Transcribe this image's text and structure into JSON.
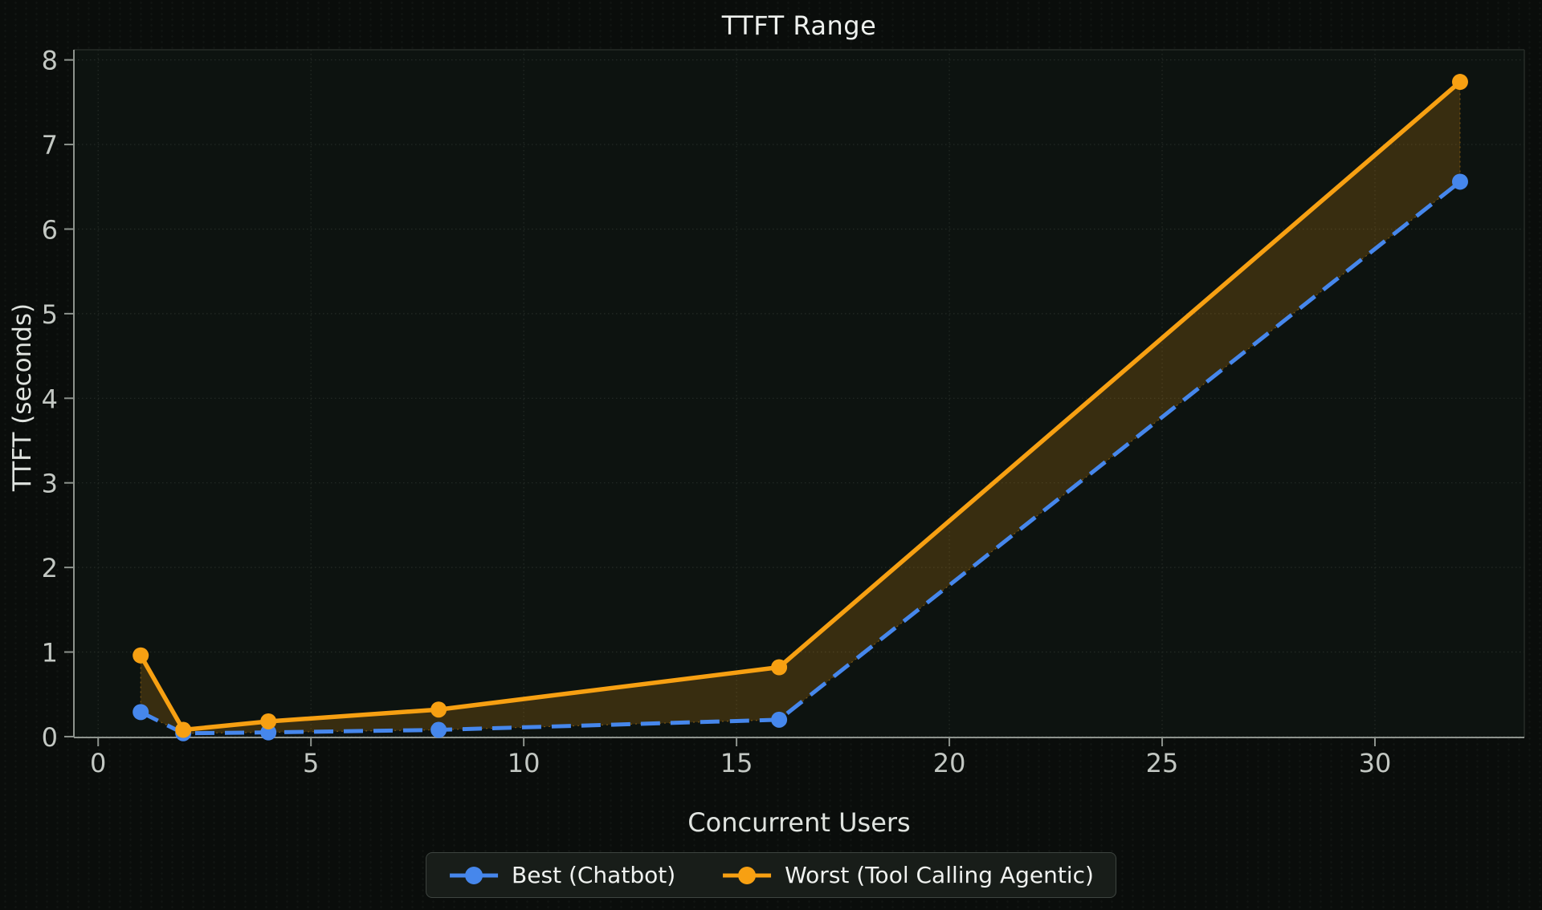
{
  "chart_data": {
    "type": "line",
    "title": "TTFT Range",
    "xlabel": "Concurrent Users",
    "ylabel": "TTFT (seconds)",
    "x": [
      1,
      2,
      4,
      8,
      16,
      32
    ],
    "series": [
      {
        "name": "Best (Chatbot)",
        "color": "#4687ec",
        "line_style": "dashed",
        "marker": "circle",
        "values": [
          0.29,
          0.04,
          0.05,
          0.08,
          0.2,
          6.56
        ]
      },
      {
        "name": "Worst (Tool Calling Agentic)",
        "color": "#f7a012",
        "line_style": "solid",
        "marker": "circle",
        "values": [
          0.96,
          0.08,
          0.18,
          0.32,
          0.82,
          7.74
        ]
      }
    ],
    "fill_between": {
      "between": [
        "Best (Chatbot)",
        "Worst (Tool Calling Agentic)"
      ],
      "color": "#f7a012",
      "opacity": 0.19
    },
    "x_ticks": [
      0,
      5,
      10,
      15,
      20,
      25,
      30
    ],
    "y_ticks": [
      0,
      1,
      2,
      3,
      4,
      5,
      6,
      7,
      8
    ],
    "xlim": [
      -0.57,
      33.51
    ],
    "ylim": [
      -0.01,
      8.12
    ],
    "grid": true,
    "legend": {
      "position": "bottom-center",
      "labels": [
        "Best (Chatbot)",
        "Worst (Tool Calling Agentic)"
      ]
    },
    "theme": {
      "background": "#0a0d0b",
      "axes_background": "#0d1310",
      "tick_text_color": "#c3c8c3",
      "title_color": "#eef1ee",
      "grid_color": "#242b26",
      "spine_color": "#8d938d",
      "dim_spine_color": "#262d28"
    }
  }
}
